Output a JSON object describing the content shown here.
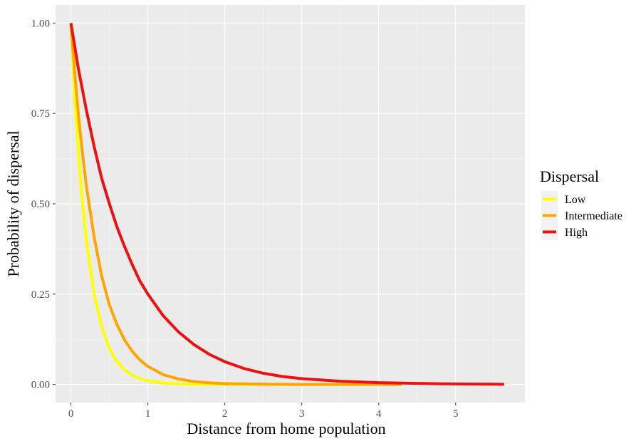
{
  "chart_data": {
    "type": "line",
    "xlabel": "Distance from home population",
    "ylabel": "Probability of dispersal",
    "xlim": [
      -0.2,
      5.9
    ],
    "ylim": [
      -0.05,
      1.05
    ],
    "x_ticks": [
      0,
      1,
      2,
      3,
      4,
      5
    ],
    "x_tick_labels": [
      "0",
      "1",
      "2",
      "3",
      "4",
      "5"
    ],
    "y_ticks": [
      0,
      0.25,
      0.5,
      0.75,
      1.0
    ],
    "y_tick_labels": [
      "0.00",
      "0.25",
      "0.50",
      "0.75",
      "1.00"
    ],
    "grid": true,
    "legend": {
      "title": "Dispersal",
      "placement": "right"
    },
    "series": [
      {
        "name": "Low",
        "color": "#FFFF00",
        "x": [
          0,
          0.05,
          0.1,
          0.15,
          0.2,
          0.3,
          0.4,
          0.5,
          0.6,
          0.7,
          0.8,
          0.9,
          1.0,
          1.2,
          1.4,
          1.6,
          1.8,
          2.0,
          2.5,
          3.0,
          3.5,
          4.0
        ],
        "y": [
          1.0,
          0.79,
          0.63,
          0.5,
          0.4,
          0.25,
          0.16,
          0.1,
          0.063,
          0.04,
          0.025,
          0.016,
          0.01,
          0.004,
          0.0016,
          0.0006,
          0.0003,
          0.0001,
          0.0,
          0.0,
          0.0,
          0.0
        ]
      },
      {
        "name": "Intermediate",
        "color": "#FFA500",
        "x": [
          0,
          0.05,
          0.1,
          0.15,
          0.2,
          0.3,
          0.4,
          0.5,
          0.6,
          0.7,
          0.8,
          0.9,
          1.0,
          1.2,
          1.4,
          1.6,
          1.8,
          2.0,
          2.5,
          3.0,
          3.5,
          4.0,
          4.3
        ],
        "y": [
          1.0,
          0.86,
          0.74,
          0.64,
          0.55,
          0.41,
          0.3,
          0.22,
          0.165,
          0.122,
          0.091,
          0.067,
          0.05,
          0.027,
          0.015,
          0.008,
          0.0045,
          0.0025,
          0.0006,
          0.0001,
          0.0,
          0.0,
          0.0
        ]
      },
      {
        "name": "High",
        "color": "#EE1111",
        "x": [
          0,
          0.1,
          0.2,
          0.3,
          0.4,
          0.5,
          0.6,
          0.7,
          0.8,
          0.9,
          1.0,
          1.2,
          1.4,
          1.6,
          1.8,
          2.0,
          2.25,
          2.5,
          2.75,
          3.0,
          3.5,
          4.0,
          4.5,
          5.0,
          5.63
        ],
        "y": [
          1.0,
          0.87,
          0.76,
          0.66,
          0.57,
          0.5,
          0.435,
          0.38,
          0.33,
          0.285,
          0.25,
          0.19,
          0.145,
          0.11,
          0.083,
          0.063,
          0.044,
          0.031,
          0.022,
          0.016,
          0.009,
          0.005,
          0.003,
          0.0015,
          0.0005
        ]
      }
    ]
  }
}
